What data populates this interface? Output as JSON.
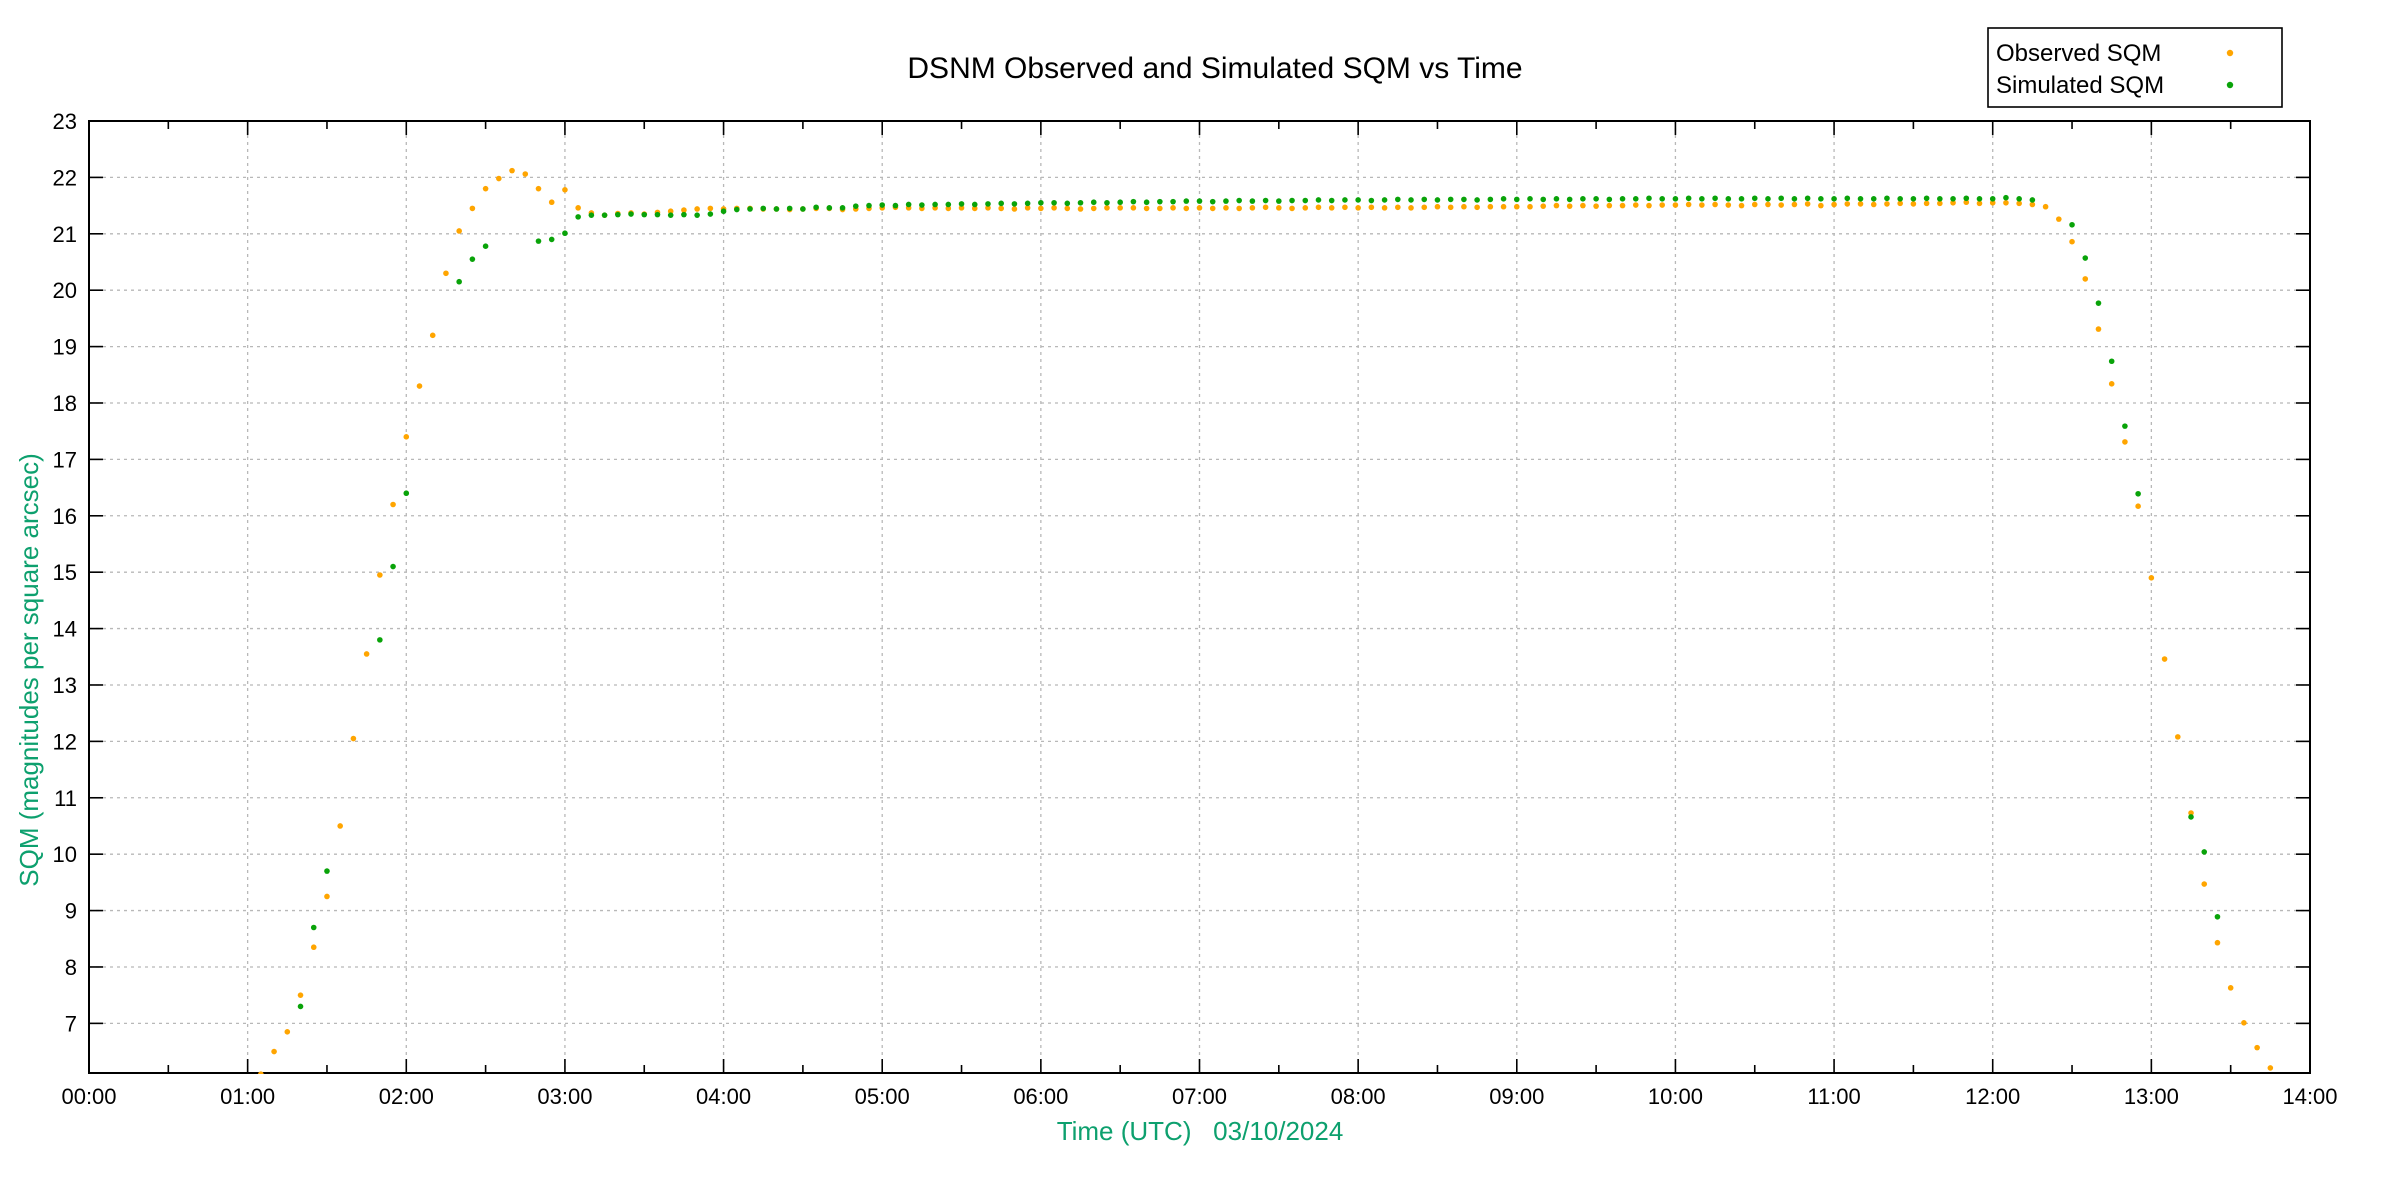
{
  "chart_data": {
    "type": "scatter",
    "title": "DSNM Observed and Simulated SQM vs Time",
    "xlabel": "Time (UTC)   03/10/2024",
    "ylabel": "SQM (magnitudes per square arcsec)",
    "axis_label_color": "#0da06e",
    "grid": "dashed-gray-on",
    "xlim_hours": [
      0,
      14
    ],
    "ylim": [
      6.12,
      23
    ],
    "x_tick_labels": [
      "00:00",
      "01:00",
      "02:00",
      "03:00",
      "04:00",
      "05:00",
      "06:00",
      "07:00",
      "08:00",
      "09:00",
      "10:00",
      "11:00",
      "12:00",
      "13:00",
      "14:00"
    ],
    "x_minor_tick_every_hours": 0.5,
    "y_ticks": [
      7,
      8,
      9,
      10,
      11,
      12,
      13,
      14,
      15,
      16,
      17,
      18,
      19,
      20,
      21,
      22,
      23
    ],
    "legend": {
      "position": "top-right",
      "entries": [
        {
          "label": "Observed SQM",
          "color": "#ffa500"
        },
        {
          "label": "Simulated SQM",
          "color": "#09a309"
        }
      ]
    },
    "marker": "filled-circle",
    "series": [
      {
        "name": "Observed SQM",
        "color": "#ffa500",
        "points": [
          [
            "01:05",
            6.1
          ],
          [
            "01:10",
            6.5
          ],
          [
            "01:15",
            6.85
          ],
          [
            "01:20",
            7.5
          ],
          [
            "01:25",
            8.35
          ],
          [
            "01:30",
            9.25
          ],
          [
            "01:35",
            10.5
          ],
          [
            "01:40",
            12.05
          ],
          [
            "01:45",
            13.55
          ],
          [
            "01:50",
            14.95
          ],
          [
            "01:55",
            16.2
          ],
          [
            "02:00",
            17.4
          ],
          [
            "02:05",
            18.3
          ],
          [
            "02:10",
            19.2
          ],
          [
            "02:15",
            20.3
          ],
          [
            "02:20",
            21.05
          ],
          [
            "02:25",
            21.45
          ],
          [
            "02:30",
            21.8
          ],
          [
            "02:35",
            21.98
          ],
          [
            "02:40",
            22.12
          ],
          [
            "02:45",
            22.06
          ],
          [
            "02:50",
            21.8
          ],
          [
            "02:55",
            21.56
          ],
          [
            "03:00",
            21.78
          ],
          [
            "03:05",
            21.46
          ],
          [
            "03:10",
            21.37
          ],
          [
            "03:15",
            21.33
          ],
          [
            "03:20",
            21.36
          ],
          [
            "03:25",
            21.37
          ],
          [
            "03:30",
            21.35
          ],
          [
            "03:35",
            21.38
          ],
          [
            "03:40",
            21.4
          ],
          [
            "03:45",
            21.42
          ],
          [
            "03:50",
            21.44
          ],
          [
            "03:55",
            21.45
          ],
          [
            "04:00",
            21.44
          ],
          [
            "04:05",
            21.45
          ],
          [
            "04:10",
            21.45
          ],
          [
            "04:15",
            21.44
          ],
          [
            "04:20",
            21.44
          ],
          [
            "04:25",
            21.43
          ],
          [
            "04:30",
            21.44
          ],
          [
            "04:35",
            21.45
          ],
          [
            "04:40",
            21.45
          ],
          [
            "04:45",
            21.43
          ],
          [
            "04:50",
            21.44
          ],
          [
            "04:55",
            21.45
          ],
          [
            "05:00",
            21.46
          ],
          [
            "05:05",
            21.47
          ],
          [
            "05:10",
            21.46
          ],
          [
            "05:15",
            21.45
          ],
          [
            "05:20",
            21.46
          ],
          [
            "05:25",
            21.45
          ],
          [
            "05:30",
            21.46
          ],
          [
            "05:35",
            21.45
          ],
          [
            "05:40",
            21.46
          ],
          [
            "05:45",
            21.45
          ],
          [
            "05:50",
            21.44
          ],
          [
            "05:55",
            21.46
          ],
          [
            "06:00",
            21.45
          ],
          [
            "06:05",
            21.46
          ],
          [
            "06:10",
            21.45
          ],
          [
            "06:15",
            21.44
          ],
          [
            "06:20",
            21.45
          ],
          [
            "06:25",
            21.46
          ],
          [
            "06:30",
            21.46
          ],
          [
            "06:35",
            21.46
          ],
          [
            "06:40",
            21.45
          ],
          [
            "06:45",
            21.45
          ],
          [
            "06:50",
            21.46
          ],
          [
            "06:55",
            21.45
          ],
          [
            "07:00",
            21.46
          ],
          [
            "07:05",
            21.45
          ],
          [
            "07:10",
            21.46
          ],
          [
            "07:15",
            21.45
          ],
          [
            "07:20",
            21.46
          ],
          [
            "07:25",
            21.47
          ],
          [
            "07:30",
            21.46
          ],
          [
            "07:35",
            21.45
          ],
          [
            "07:40",
            21.46
          ],
          [
            "07:45",
            21.47
          ],
          [
            "07:50",
            21.46
          ],
          [
            "07:55",
            21.47
          ],
          [
            "08:00",
            21.46
          ],
          [
            "08:05",
            21.47
          ],
          [
            "08:10",
            21.46
          ],
          [
            "08:15",
            21.47
          ],
          [
            "08:20",
            21.46
          ],
          [
            "08:25",
            21.47
          ],
          [
            "08:30",
            21.48
          ],
          [
            "08:35",
            21.47
          ],
          [
            "08:40",
            21.48
          ],
          [
            "08:45",
            21.47
          ],
          [
            "08:50",
            21.48
          ],
          [
            "08:55",
            21.48
          ],
          [
            "09:00",
            21.48
          ],
          [
            "09:05",
            21.48
          ],
          [
            "09:10",
            21.49
          ],
          [
            "09:15",
            21.5
          ],
          [
            "09:20",
            21.49
          ],
          [
            "09:25",
            21.5
          ],
          [
            "09:30",
            21.49
          ],
          [
            "09:35",
            21.5
          ],
          [
            "09:40",
            21.5
          ],
          [
            "09:45",
            21.51
          ],
          [
            "09:50",
            21.5
          ],
          [
            "09:55",
            21.51
          ],
          [
            "10:00",
            21.51
          ],
          [
            "10:05",
            21.52
          ],
          [
            "10:10",
            21.51
          ],
          [
            "10:15",
            21.52
          ],
          [
            "10:20",
            21.51
          ],
          [
            "10:25",
            21.5
          ],
          [
            "10:30",
            21.52
          ],
          [
            "10:35",
            21.52
          ],
          [
            "10:40",
            21.51
          ],
          [
            "10:45",
            21.52
          ],
          [
            "10:50",
            21.53
          ],
          [
            "10:55",
            21.5
          ],
          [
            "11:00",
            21.52
          ],
          [
            "11:05",
            21.53
          ],
          [
            "11:10",
            21.53
          ],
          [
            "11:15",
            21.52
          ],
          [
            "11:20",
            21.53
          ],
          [
            "11:25",
            21.54
          ],
          [
            "11:30",
            21.53
          ],
          [
            "11:35",
            21.54
          ],
          [
            "11:40",
            21.54
          ],
          [
            "11:45",
            21.55
          ],
          [
            "11:50",
            21.56
          ],
          [
            "11:55",
            21.54
          ],
          [
            "12:00",
            21.55
          ],
          [
            "12:05",
            21.55
          ],
          [
            "12:10",
            21.54
          ],
          [
            "12:15",
            21.52
          ],
          [
            "12:20",
            21.48
          ],
          [
            "12:25",
            21.26
          ],
          [
            "12:30",
            20.86
          ],
          [
            "12:35",
            20.2
          ],
          [
            "12:40",
            19.31
          ],
          [
            "12:45",
            18.34
          ],
          [
            "12:50",
            17.31
          ],
          [
            "12:55",
            16.17
          ],
          [
            "13:00",
            14.9
          ],
          [
            "13:05",
            13.46
          ],
          [
            "13:10",
            12.08
          ],
          [
            "13:15",
            10.73
          ],
          [
            "13:20",
            9.47
          ],
          [
            "13:25",
            8.43
          ],
          [
            "13:30",
            7.63
          ],
          [
            "13:35",
            7.01
          ],
          [
            "13:40",
            6.57
          ],
          [
            "13:45",
            6.21
          ]
        ]
      },
      {
        "name": "Simulated SQM",
        "color": "#09a309",
        "points": [
          [
            "01:20",
            7.3
          ],
          [
            "01:25",
            8.7
          ],
          [
            "01:30",
            9.7
          ],
          [
            "01:50",
            13.8
          ],
          [
            "01:55",
            15.1
          ],
          [
            "02:00",
            16.4
          ],
          [
            "02:20",
            20.15
          ],
          [
            "02:25",
            20.55
          ],
          [
            "02:30",
            20.78
          ],
          [
            "02:50",
            20.87
          ],
          [
            "02:55",
            20.9
          ],
          [
            "03:00",
            21.01
          ],
          [
            "03:05",
            21.3
          ],
          [
            "03:10",
            21.33
          ],
          [
            "03:15",
            21.33
          ],
          [
            "03:20",
            21.34
          ],
          [
            "03:25",
            21.35
          ],
          [
            "03:30",
            21.34
          ],
          [
            "03:35",
            21.34
          ],
          [
            "03:40",
            21.33
          ],
          [
            "03:45",
            21.34
          ],
          [
            "03:50",
            21.33
          ],
          [
            "03:55",
            21.35
          ],
          [
            "04:00",
            21.4
          ],
          [
            "04:05",
            21.43
          ],
          [
            "04:10",
            21.44
          ],
          [
            "04:15",
            21.45
          ],
          [
            "04:20",
            21.44
          ],
          [
            "04:25",
            21.45
          ],
          [
            "04:30",
            21.44
          ],
          [
            "04:35",
            21.47
          ],
          [
            "04:40",
            21.46
          ],
          [
            "04:45",
            21.46
          ],
          [
            "04:50",
            21.49
          ],
          [
            "04:55",
            21.5
          ],
          [
            "05:00",
            21.51
          ],
          [
            "05:05",
            21.5
          ],
          [
            "05:10",
            21.52
          ],
          [
            "05:15",
            21.51
          ],
          [
            "05:20",
            21.52
          ],
          [
            "05:25",
            21.52
          ],
          [
            "05:30",
            21.53
          ],
          [
            "05:35",
            21.52
          ],
          [
            "05:40",
            21.53
          ],
          [
            "05:45",
            21.54
          ],
          [
            "05:50",
            21.53
          ],
          [
            "05:55",
            21.54
          ],
          [
            "06:00",
            21.55
          ],
          [
            "06:05",
            21.55
          ],
          [
            "06:10",
            21.54
          ],
          [
            "06:15",
            21.55
          ],
          [
            "06:20",
            21.56
          ],
          [
            "06:25",
            21.55
          ],
          [
            "06:30",
            21.56
          ],
          [
            "06:35",
            21.57
          ],
          [
            "06:40",
            21.56
          ],
          [
            "06:45",
            21.57
          ],
          [
            "06:50",
            21.57
          ],
          [
            "06:55",
            21.58
          ],
          [
            "07:00",
            21.58
          ],
          [
            "07:05",
            21.57
          ],
          [
            "07:10",
            21.58
          ],
          [
            "07:15",
            21.59
          ],
          [
            "07:20",
            21.58
          ],
          [
            "07:25",
            21.59
          ],
          [
            "07:30",
            21.58
          ],
          [
            "07:35",
            21.59
          ],
          [
            "07:40",
            21.59
          ],
          [
            "07:45",
            21.6
          ],
          [
            "07:50",
            21.59
          ],
          [
            "07:55",
            21.6
          ],
          [
            "08:00",
            21.6
          ],
          [
            "08:05",
            21.59
          ],
          [
            "08:10",
            21.6
          ],
          [
            "08:15",
            21.61
          ],
          [
            "08:20",
            21.6
          ],
          [
            "08:25",
            21.61
          ],
          [
            "08:30",
            21.6
          ],
          [
            "08:35",
            21.61
          ],
          [
            "08:40",
            21.61
          ],
          [
            "08:45",
            21.6
          ],
          [
            "08:50",
            21.61
          ],
          [
            "08:55",
            21.62
          ],
          [
            "09:00",
            21.61
          ],
          [
            "09:05",
            21.62
          ],
          [
            "09:10",
            21.61
          ],
          [
            "09:15",
            21.62
          ],
          [
            "09:20",
            21.61
          ],
          [
            "09:25",
            21.62
          ],
          [
            "09:30",
            21.62
          ],
          [
            "09:35",
            21.61
          ],
          [
            "09:40",
            21.62
          ],
          [
            "09:45",
            21.62
          ],
          [
            "09:50",
            21.63
          ],
          [
            "09:55",
            21.62
          ],
          [
            "10:00",
            21.62
          ],
          [
            "10:05",
            21.63
          ],
          [
            "10:10",
            21.62
          ],
          [
            "10:15",
            21.63
          ],
          [
            "10:20",
            21.62
          ],
          [
            "10:25",
            21.62
          ],
          [
            "10:30",
            21.63
          ],
          [
            "10:35",
            21.62
          ],
          [
            "10:40",
            21.63
          ],
          [
            "10:45",
            21.62
          ],
          [
            "10:50",
            21.63
          ],
          [
            "10:55",
            21.62
          ],
          [
            "11:00",
            21.62
          ],
          [
            "11:05",
            21.63
          ],
          [
            "11:10",
            21.62
          ],
          [
            "11:15",
            21.62
          ],
          [
            "11:20",
            21.63
          ],
          [
            "11:25",
            21.62
          ],
          [
            "11:30",
            21.62
          ],
          [
            "11:35",
            21.63
          ],
          [
            "11:40",
            21.62
          ],
          [
            "11:45",
            21.62
          ],
          [
            "11:50",
            21.63
          ],
          [
            "11:55",
            21.62
          ],
          [
            "12:00",
            21.62
          ],
          [
            "12:05",
            21.64
          ],
          [
            "12:10",
            21.62
          ],
          [
            "12:15",
            21.6
          ],
          [
            "12:30",
            21.16
          ],
          [
            "12:35",
            20.57
          ],
          [
            "12:40",
            19.77
          ],
          [
            "12:45",
            18.74
          ],
          [
            "12:50",
            17.59
          ],
          [
            "12:55",
            16.39
          ],
          [
            "13:15",
            10.66
          ],
          [
            "13:20",
            10.04
          ],
          [
            "13:25",
            8.89
          ]
        ]
      }
    ]
  }
}
